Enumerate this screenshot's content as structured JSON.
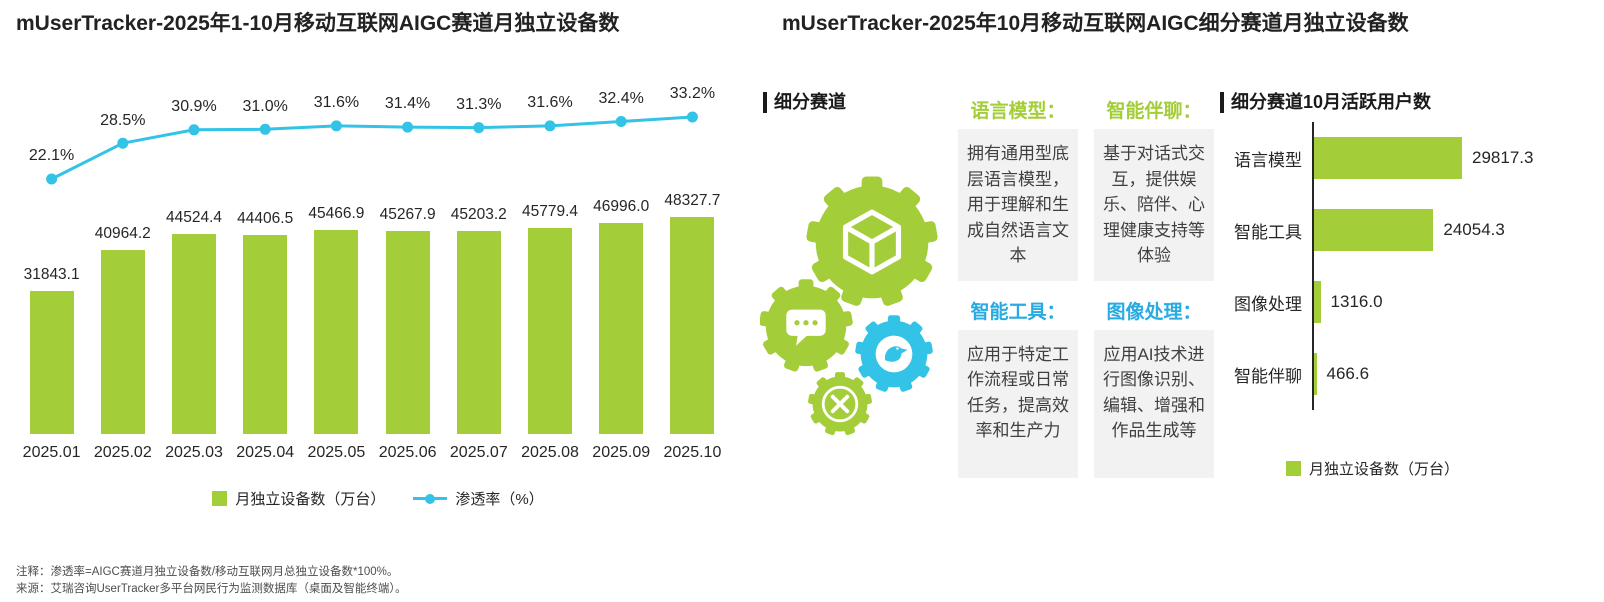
{
  "left": {
    "title": "mUserTracker-2025年1-10月移动互联网AIGC赛道月独立设备数",
    "legend": {
      "bars": "月独立设备数（万台）",
      "line": "渗透率（%）"
    }
  },
  "right": {
    "title": "mUserTracker-2025年10月移动互联网AIGC细分赛道月独立设备数",
    "section_label": "细分赛道",
    "chart_label": "细分赛道10月活跃用户数",
    "legend": "月独立设备数（万台）",
    "categories": [
      {
        "name": "语言模型：",
        "color": "green",
        "desc": "拥有通用型底层语言模型，用于理解和生成自然语言文本"
      },
      {
        "name": "智能伴聊：",
        "color": "green",
        "desc": "基于对话式交互，提供娱乐、陪伴、心理健康支持等体验"
      },
      {
        "name": "智能工具：",
        "color": "blue",
        "desc": "应用于特定工作流程或日常任务，提高效率和生产力"
      },
      {
        "name": "图像处理：",
        "color": "blue",
        "desc": "应用AI技术进行图像识别、编辑、增强和作品生成等"
      }
    ]
  },
  "footer": {
    "note1": "注释：渗透率=AIGC赛道月独立设备数/移动互联网月总独立设备数*100%。",
    "note2": "来源：艾瑞咨询UserTracker多平台网民行为监测数据库（桌面及智能终端）。"
  },
  "colors": {
    "green": "#a4cd3a",
    "cyan": "#33c3e6",
    "blue": "#29abe2"
  },
  "chart_data": [
    {
      "type": "bar",
      "title": "mUserTracker-2025年1-10月移动互联网AIGC赛道月独立设备数",
      "categories": [
        "2025.01",
        "2025.02",
        "2025.03",
        "2025.04",
        "2025.05",
        "2025.06",
        "2025.07",
        "2025.08",
        "2025.09",
        "2025.10"
      ],
      "series": [
        {
          "name": "月独立设备数（万台）",
          "kind": "bar",
          "values": [
            31843.1,
            40964.2,
            44524.4,
            44406.5,
            45466.9,
            45267.9,
            45203.2,
            45779.4,
            46996.0,
            48327.7
          ]
        },
        {
          "name": "渗透率（%）",
          "kind": "line",
          "values": [
            22.1,
            28.5,
            30.9,
            31.0,
            31.6,
            31.4,
            31.3,
            31.6,
            32.4,
            33.2
          ]
        }
      ],
      "xlabel": "",
      "ylabel": "月独立设备数（万台）",
      "y2label": "渗透率（%）",
      "grid": false,
      "legend_position": "bottom"
    },
    {
      "type": "bar",
      "orientation": "horizontal",
      "title": "细分赛道10月活跃用户数",
      "categories": [
        "语言模型",
        "智能工具",
        "图像处理",
        "智能伴聊"
      ],
      "values": [
        29817.3,
        24054.3,
        1316.0,
        466.6
      ],
      "xlabel": "月独立设备数（万台）",
      "ylabel": "",
      "grid": false,
      "legend_position": "bottom"
    }
  ]
}
